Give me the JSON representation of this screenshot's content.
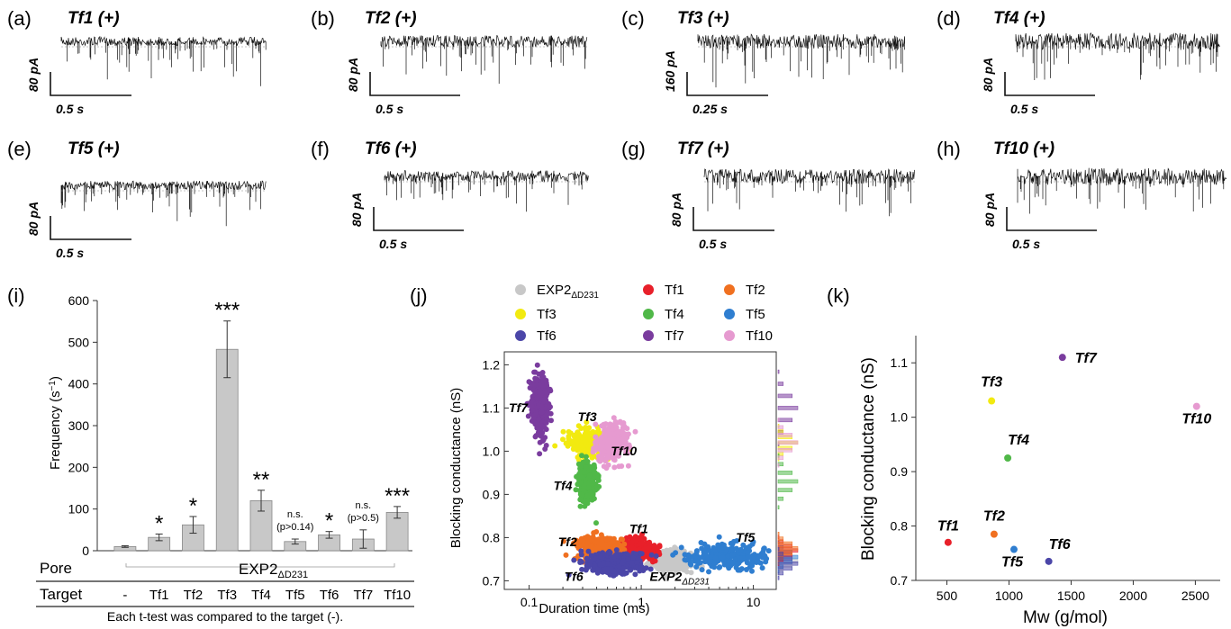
{
  "figure": {
    "traces": [
      {
        "panel": "(a)",
        "name": "Tf1 (+)",
        "ybar": "80 pA",
        "xbar": "0.5 s"
      },
      {
        "panel": "(b)",
        "name": "Tf2 (+)",
        "ybar": "80 pA",
        "xbar": "0.5 s"
      },
      {
        "panel": "(c)",
        "name": "Tf3 (+)",
        "ybar": "160 pA",
        "xbar": "0.25 s"
      },
      {
        "panel": "(d)",
        "name": "Tf4 (+)",
        "ybar": "80 pA",
        "xbar": "0.5 s"
      },
      {
        "panel": "(e)",
        "name": "Tf5 (+)",
        "ybar": "80 pA",
        "xbar": "0.5 s"
      },
      {
        "panel": "(f)",
        "name": "Tf6 (+)",
        "ybar": "80 pA",
        "xbar": "0.5 s"
      },
      {
        "panel": "(g)",
        "name": "Tf7 (+)",
        "ybar": "80 pA",
        "xbar": "0.5 s"
      },
      {
        "panel": "(h)",
        "name": "Tf10 (+)",
        "ybar": "80 pA",
        "xbar": "0.5 s"
      }
    ],
    "colors": {
      "EXP2": "#c8c8c8",
      "Tf1": "#e8202a",
      "Tf2": "#f07020",
      "Tf3": "#f2ea10",
      "Tf4": "#50b848",
      "Tf5": "#2f7ed0",
      "Tf6": "#4b46a8",
      "Tf7": "#7a3c9e",
      "Tf10": "#e69ad0",
      "bar": "#c8c8c8"
    }
  },
  "chart_data": [
    {
      "panel": "(i)",
      "type": "bar",
      "ylabel": "Frequency (s",
      "ylabel_sup": "−1",
      "ylabel_close": ")",
      "ylim": [
        0,
        600
      ],
      "yticks": [
        "0",
        "100",
        "200",
        "300",
        "400",
        "500",
        "600"
      ],
      "categories": [
        "-",
        "Tf1",
        "Tf2",
        "Tf3",
        "Tf4",
        "Tf5",
        "Tf6",
        "Tf7",
        "Tf10"
      ],
      "values": [
        10,
        32,
        62,
        483,
        120,
        22,
        38,
        28,
        92
      ],
      "errors": [
        2,
        8,
        20,
        68,
        25,
        6,
        8,
        22,
        14
      ],
      "sig": [
        "",
        "*",
        "*",
        "***",
        "**",
        "n.s.",
        "*",
        "n.s.",
        "***"
      ],
      "sig_p": [
        "",
        "",
        "",
        "",
        "",
        "(p>0.14)",
        "",
        "(p>0.5)",
        ""
      ],
      "pore_label": "Pore",
      "pore_name": "EXP2",
      "pore_sub": "ΔD231",
      "target_label": "Target",
      "footnote": "Each t-test was compared to the target (-)."
    },
    {
      "panel": "(j)",
      "type": "scatter",
      "xlabel": "Duration time (ms)",
      "ylabel": "Blocking conductance (nS)",
      "xscale": "log",
      "xlim": [
        0.06,
        16
      ],
      "ylim": [
        0.68,
        1.23
      ],
      "xticks": [
        "0.1",
        "1",
        "10"
      ],
      "yticks": [
        "0.7",
        "0.8",
        "0.9",
        "1.0",
        "1.1",
        "1.2"
      ],
      "legend": [
        "EXP2",
        "Tf1",
        "Tf2",
        "Tf3",
        "Tf4",
        "Tf5",
        "Tf6",
        "Tf7",
        "Tf10"
      ],
      "legend_sub": "ΔD231",
      "clusters": [
        {
          "name": "EXP2",
          "x": 1.9,
          "y": 0.745
        },
        {
          "name": "Tf5",
          "x": 6.0,
          "y": 0.755
        },
        {
          "name": "Tf1",
          "x": 0.9,
          "y": 0.77
        },
        {
          "name": "Tf2",
          "x": 0.4,
          "y": 0.775
        },
        {
          "name": "Tf6",
          "x": 0.55,
          "y": 0.74
        },
        {
          "name": "Tf7",
          "x": 0.125,
          "y": 1.1
        },
        {
          "name": "Tf3",
          "x": 0.35,
          "y": 1.02
        },
        {
          "name": "Tf4",
          "x": 0.33,
          "y": 0.93
        },
        {
          "name": "Tf10",
          "x": 0.55,
          "y": 1.02
        }
      ],
      "labels": [
        "Tf7",
        "Tf3",
        "Tf10",
        "Tf4",
        "Tf1",
        "Tf2",
        "Tf5",
        "Tf6",
        "EXP2"
      ]
    },
    {
      "panel": "(k)",
      "type": "scatter",
      "xlabel": "Mw (g/mol)",
      "ylabel": "Blocking conductance (nS)",
      "xlim": [
        250,
        2700
      ],
      "ylim": [
        0.7,
        1.15
      ],
      "xticks": [
        "500",
        "1000",
        "1500",
        "2000",
        "2500"
      ],
      "yticks": [
        "0.7",
        "0.8",
        "0.9",
        "1.0",
        "1.1"
      ],
      "points": [
        {
          "name": "Tf1",
          "x": 510,
          "y": 0.77
        },
        {
          "name": "Tf2",
          "x": 880,
          "y": 0.785
        },
        {
          "name": "Tf5",
          "x": 1040,
          "y": 0.757
        },
        {
          "name": "Tf6",
          "x": 1320,
          "y": 0.735
        },
        {
          "name": "Tf4",
          "x": 990,
          "y": 0.925
        },
        {
          "name": "Tf3",
          "x": 860,
          "y": 1.03
        },
        {
          "name": "Tf7",
          "x": 1430,
          "y": 1.11
        },
        {
          "name": "Tf10",
          "x": 2510,
          "y": 1.02
        }
      ]
    }
  ]
}
